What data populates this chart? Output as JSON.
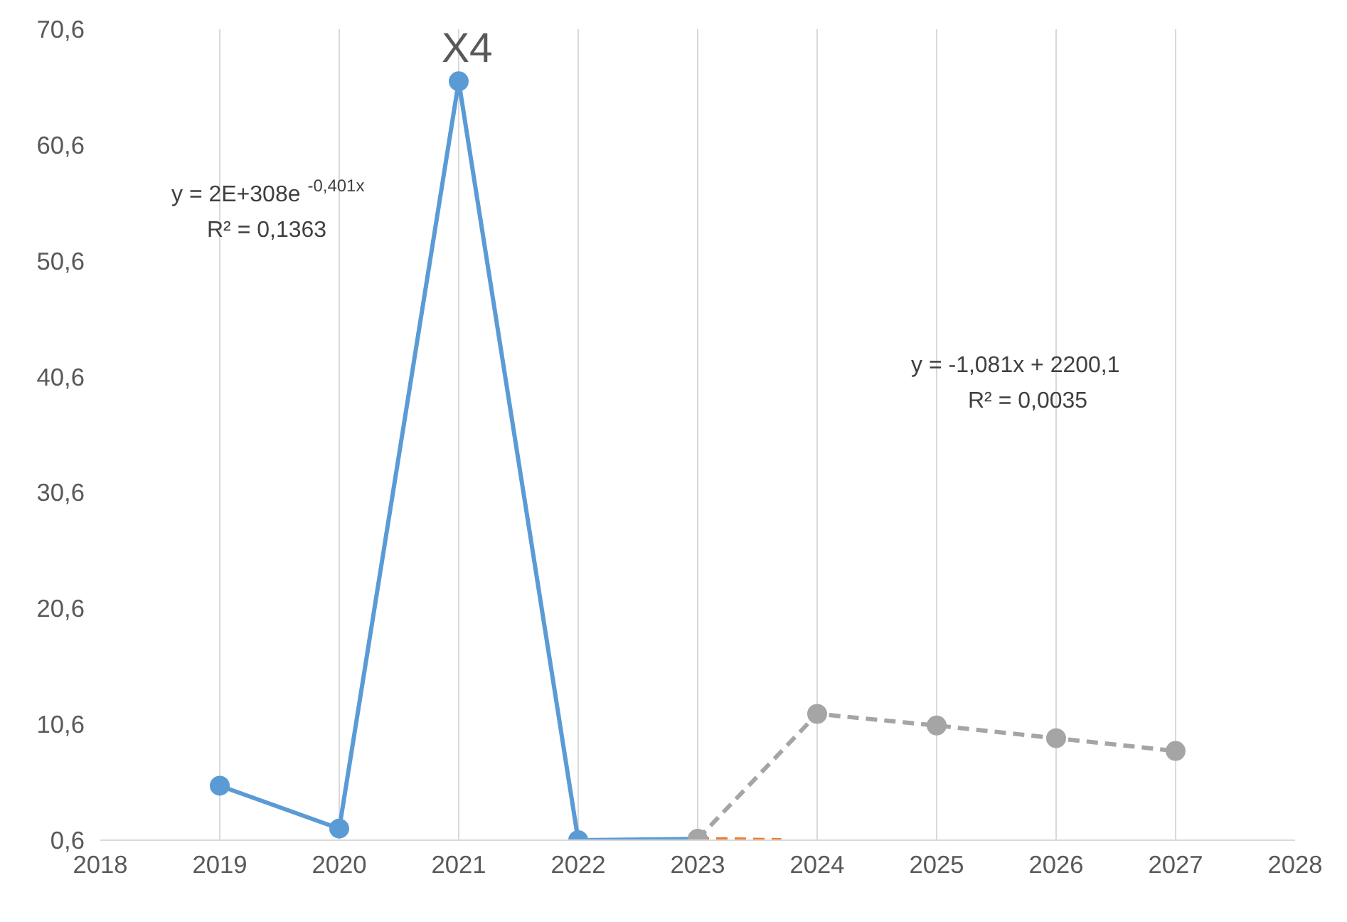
{
  "chart_data": {
    "type": "line",
    "title": "X4",
    "xlim": [
      2018,
      2028
    ],
    "xticks": [
      2018,
      2019,
      2020,
      2021,
      2022,
      2023,
      2024,
      2025,
      2026,
      2027,
      2028
    ],
    "ylim": [
      0.6,
      70.6
    ],
    "yticks": [
      {
        "value": 0.6,
        "label": "0,6"
      },
      {
        "value": 10.6,
        "label": "10,6"
      },
      {
        "value": 20.6,
        "label": "20,6"
      },
      {
        "value": 30.6,
        "label": "30,6"
      },
      {
        "value": 40.6,
        "label": "40,6"
      },
      {
        "value": 50.6,
        "label": "50,6"
      },
      {
        "value": 60.6,
        "label": "60,6"
      },
      {
        "value": 70.6,
        "label": "70,6"
      }
    ],
    "grid": "x",
    "marker": "circle",
    "series": [
      {
        "color": "#5b9bd5",
        "x": [
          2019,
          2020,
          2021,
          2022,
          2023
        ],
        "values": [
          5.3,
          1.6,
          66.1,
          0.6,
          0.7
        ],
        "line_style": "solid"
      },
      {
        "color": "#ed7d31",
        "x": [
          2023,
          2023.7
        ],
        "values": [
          0.7,
          0.6
        ],
        "line_style": "dashed",
        "marker": "none"
      },
      {
        "color": "#a5a5a5",
        "x": [
          2023,
          2024,
          2025,
          2026,
          2027
        ],
        "values": [
          0.7,
          11.5,
          10.5,
          9.4,
          8.3
        ],
        "line_style": "dashed"
      }
    ],
    "annotations": [
      "y = 2E+308e$^{-0,401x}$",
      "R² = 0,1363",
      "y = -1,081x + 2200,1",
      "R² = 0,0035"
    ]
  }
}
